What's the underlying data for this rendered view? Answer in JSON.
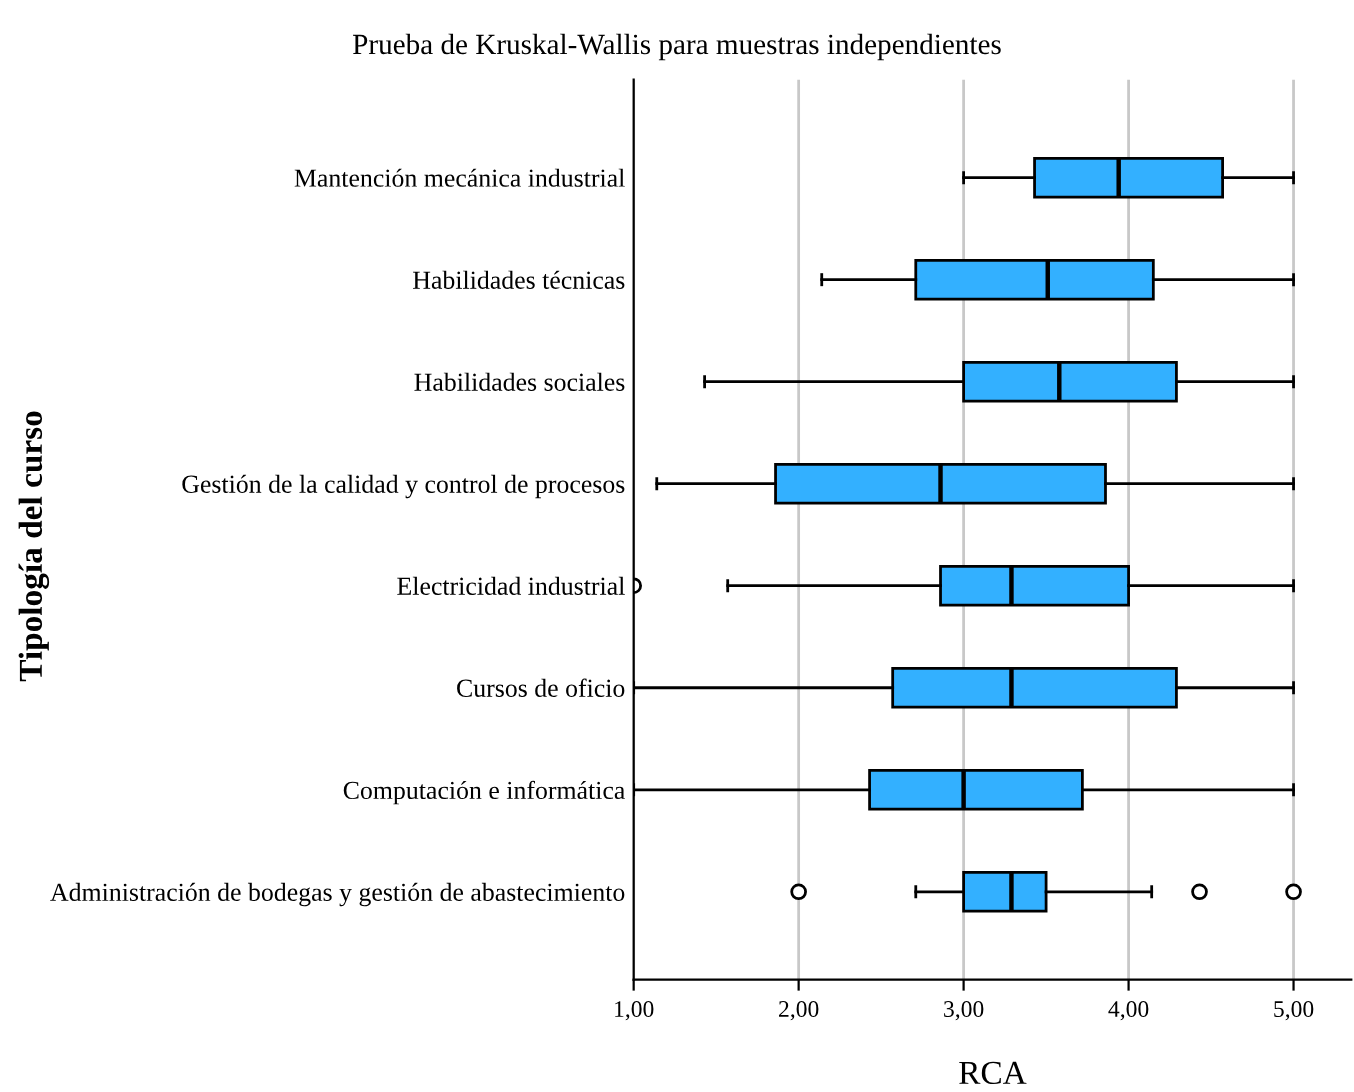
{
  "chart_data": {
    "type": "box",
    "orientation": "horizontal",
    "title": "Prueba de Kruskal-Wallis para muestras independientes",
    "xlabel": "RCA",
    "ylabel": "Tipología del curso",
    "categories": [
      "Mantención mecánica industrial",
      "Habilidades técnicas",
      "Habilidades sociales",
      "Gestión de la calidad y control de procesos",
      "Electricidad industrial",
      "Cursos de oficio",
      "Computación e informática",
      "Administración de bodegas y gestión de abastecimiento"
    ],
    "color": "#33b0ff",
    "boxes": [
      {
        "low": 3.0,
        "q1": 3.43,
        "median": 3.94,
        "q3": 4.57,
        "high": 5.0
      },
      {
        "low": 2.14,
        "q1": 2.71,
        "median": 3.51,
        "q3": 4.15,
        "high": 5.0
      },
      {
        "low": 1.43,
        "q1": 3.0,
        "median": 3.58,
        "q3": 4.29,
        "high": 5.0
      },
      {
        "low": 1.14,
        "q1": 1.86,
        "median": 2.86,
        "q3": 3.86,
        "high": 5.0
      },
      {
        "low": 1.57,
        "q1": 2.86,
        "median": 3.29,
        "q3": 4.0,
        "high": 5.0,
        "outliers": [
          1.0
        ]
      },
      {
        "low": 1.0,
        "q1": 2.57,
        "median": 3.29,
        "q3": 4.29,
        "high": 5.0
      },
      {
        "low": 1.0,
        "q1": 2.43,
        "median": 3.0,
        "q3": 3.72,
        "high": 5.0
      },
      {
        "low": 2.71,
        "q1": 3.0,
        "median": 3.29,
        "q3": 3.5,
        "high": 4.14,
        "outliers": [
          2.0,
          4.43,
          5.0
        ]
      }
    ],
    "xlim": [
      1,
      5.35
    ],
    "xticks": [
      {
        "value": 1,
        "label": "1,00"
      },
      {
        "value": 2,
        "label": "2,00"
      },
      {
        "value": 3,
        "label": "3,00"
      },
      {
        "value": 4,
        "label": "4,00"
      },
      {
        "value": 5,
        "label": "5,00"
      }
    ],
    "grid": "x"
  }
}
